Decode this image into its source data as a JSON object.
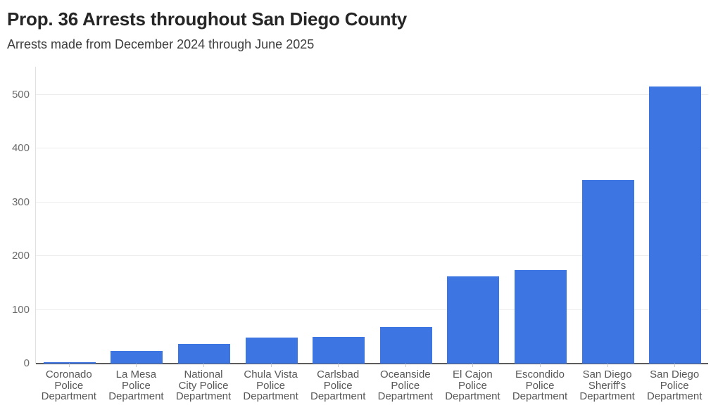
{
  "header": {
    "title": "Prop. 36 Arrests throughout San Diego County",
    "subtitle": "Arrests made from December 2024 through June 2025"
  },
  "chart_data": {
    "type": "bar",
    "title": "Prop. 36 Arrests throughout San Diego County",
    "subtitle": "Arrests made from December 2024 through June 2025",
    "categories": [
      "Coronado Police Department",
      "La Mesa Police Department",
      "National City Police Department",
      "Chula Vista Police Department",
      "Carlsbad Police Department",
      "Oceanside Police Department",
      "El Cajon Police Department",
      "Escondido Police Department",
      "San Diego Sheriff's Department",
      "San Diego Police Department"
    ],
    "category_label_lines": [
      [
        "Coronado",
        "Police",
        "Department"
      ],
      [
        "La Mesa",
        "Police",
        "Department"
      ],
      [
        "National",
        "City Police",
        "Department"
      ],
      [
        "Chula Vista",
        "Police",
        "Department"
      ],
      [
        "Carlsbad",
        "Police",
        "Department"
      ],
      [
        "Oceanside",
        "Police",
        "Department"
      ],
      [
        "El Cajon",
        "Police",
        "Department"
      ],
      [
        "Escondido",
        "Police",
        "Department"
      ],
      [
        "San Diego",
        "Sheriff's",
        "Department"
      ],
      [
        "San Diego",
        "Police",
        "Department"
      ]
    ],
    "values": [
      3,
      24,
      36,
      48,
      50,
      68,
      162,
      174,
      342,
      515
    ],
    "xlabel": "",
    "ylabel": "",
    "y_ticks": [
      0,
      100,
      200,
      300,
      400,
      500
    ],
    "ylim": [
      0,
      552
    ],
    "grid": "horizontal",
    "legend": "none",
    "bar_color": "#3d76e3",
    "gridline_color": "#ececec",
    "axis_line_color": "#5c5c5c",
    "label_color": "#575757"
  }
}
